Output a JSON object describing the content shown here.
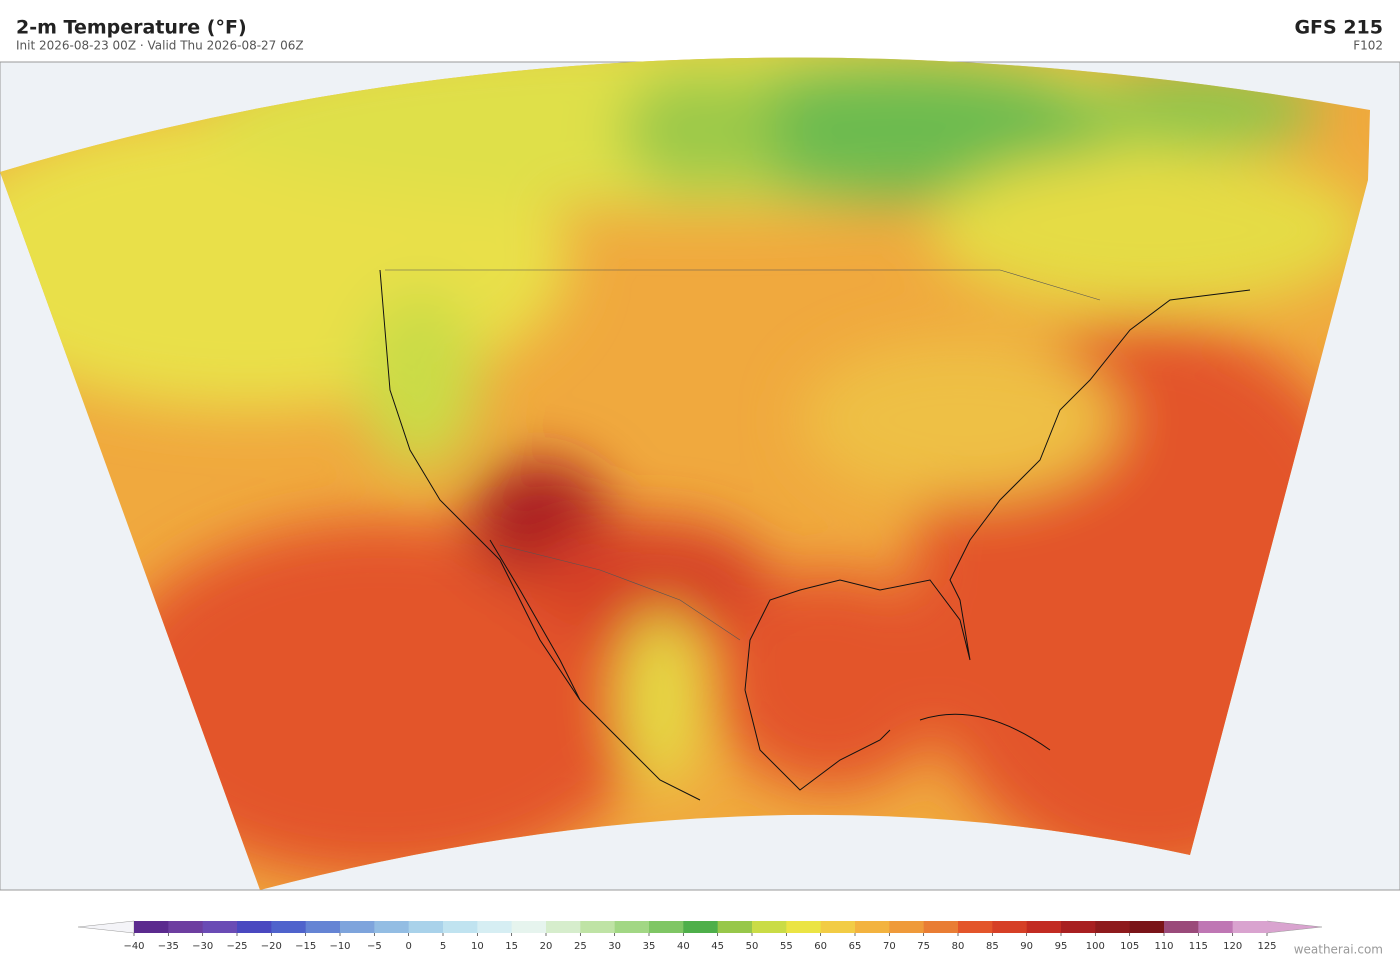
{
  "header": {
    "title": "2-m Temperature  (°F)",
    "subtitle": "Init 2026-08-23 00Z  ·  Valid Thu 2026-08-27 06Z",
    "model": "GFS  215",
    "forecast": "F102"
  },
  "colorbar": {
    "ticks": [
      {
        "value": -40,
        "label": "−40"
      },
      {
        "value": -35,
        "label": "−35"
      },
      {
        "value": -30,
        "label": "−30"
      },
      {
        "value": -25,
        "label": "−25"
      },
      {
        "value": -20,
        "label": "−20"
      },
      {
        "value": -15,
        "label": "−15"
      },
      {
        "value": -10,
        "label": "−10"
      },
      {
        "value": -5,
        "label": "−5"
      },
      0,
      5,
      10,
      15,
      20,
      25,
      30,
      35,
      40,
      45,
      50,
      55,
      60,
      65,
      70,
      75,
      80,
      85,
      90,
      95,
      100,
      105,
      110,
      115,
      120,
      125
    ],
    "colors": [
      "#5b2a8e",
      "#6d3ea0",
      "#6a4bb5",
      "#4a48c0",
      "#4f63cc",
      "#6584d4",
      "#7ea4dc",
      "#93bde3",
      "#a9d2ea",
      "#c0e3f0",
      "#d6eef3",
      "#e6f4ee",
      "#d6edcc",
      "#bfe3a5",
      "#a2d784",
      "#7fc664",
      "#4eaf4a",
      "#97c74a",
      "#cadc46",
      "#ebe444",
      "#f2cc45",
      "#f3b33f",
      "#ef9a3a",
      "#e97d34",
      "#e3552a",
      "#d63f26",
      "#c22b22",
      "#a81f20",
      "#8e1a1c",
      "#7a1418",
      "#9a4a7a",
      "#bf77b4",
      "#d9a3cf"
    ],
    "extend_colors": [
      "#f4f4f8",
      "#d9a3cf"
    ]
  },
  "watermark": "weatherai.com"
}
